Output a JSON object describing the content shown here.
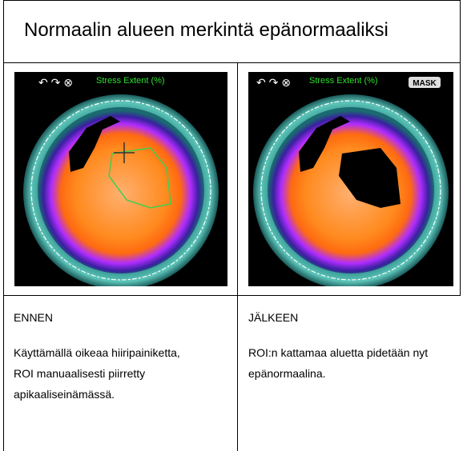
{
  "header": {
    "title": "Normaalin alueen merkintä epänormaaliksi"
  },
  "table": {
    "images": [
      {
        "caption": "Stress Extent (%)"
      },
      {
        "caption": "Stress Extent (%)",
        "badge": "MASK"
      }
    ],
    "rows": [
      [
        "ENNEN",
        "JÄLKEEN"
      ],
      [
        "Käyttämällä oikeaa hiiripainiketta, ROI manuaalisesti piirretty apikaaliseinämässä.",
        "ROI:n kattamaa aluetta pidetään nyt epänormaalina."
      ]
    ]
  }
}
